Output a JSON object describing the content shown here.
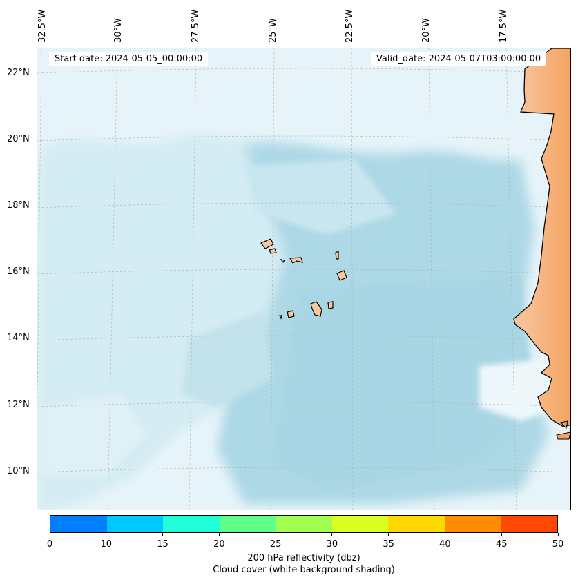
{
  "top_lon_labels": [
    "32.5°W",
    "30°W",
    "27.5°W",
    "25°W",
    "22.5°W",
    "20°W",
    "17.5°W"
  ],
  "left_lat_labels": [
    "22°N",
    "20°N",
    "18°N",
    "16°N",
    "14°N",
    "12°N",
    "10°N"
  ],
  "start_date": "Start date: 2024-05-05_00:00:00",
  "valid_date": "Valid_date: 2024-05-07T03:00:00.00",
  "colorbar": {
    "colors": [
      "#0080ff",
      "#00c8ff",
      "#20ffd8",
      "#60ff8c",
      "#a0ff50",
      "#d8ff20",
      "#ffd800",
      "#ff8c00",
      "#ff4800"
    ],
    "ticks": [
      "0",
      "10",
      "15",
      "20",
      "25",
      "30",
      "35",
      "40",
      "45",
      "50"
    ],
    "label_line1": "200 hPa reflectivity (dbz)",
    "label_line2": "Cloud cover (white background shading)"
  },
  "colors": {
    "cloud_shading": "#add8e6",
    "land_fill": "#f4a460",
    "island_fill": "#f8c8a0",
    "coastline": "#000000"
  }
}
